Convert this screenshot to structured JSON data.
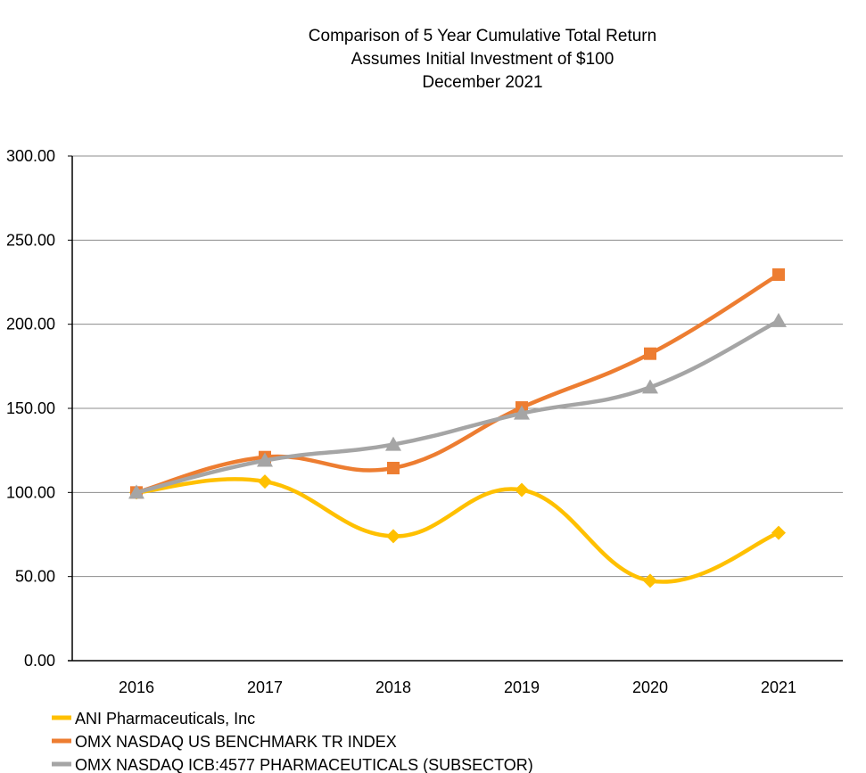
{
  "chart_data": {
    "type": "line",
    "title_lines": [
      "Comparison of 5 Year Cumulative Total Return",
      "Assumes Initial Investment of $100",
      "December 2021"
    ],
    "categories": [
      "2016",
      "2017",
      "2018",
      "2019",
      "2020",
      "2021"
    ],
    "ylim": [
      0,
      300
    ],
    "yticks": [
      "0.00",
      "50.00",
      "100.00",
      "150.00",
      "200.00",
      "250.00",
      "300.00"
    ],
    "ytick_values": [
      0,
      50,
      100,
      150,
      200,
      250,
      300
    ],
    "grid": true,
    "legend_position": "bottom-left",
    "series": [
      {
        "name": "ANI Pharmaceuticals, Inc",
        "marker": "diamond",
        "color": "#FFC000",
        "values": [
          100,
          106.5,
          74,
          101.5,
          47.5,
          76
        ]
      },
      {
        "name": "OMX NASDAQ US BENCHMARK TR INDEX",
        "marker": "square",
        "color": "#ED7D31",
        "values": [
          100,
          121,
          114.5,
          150.5,
          182.5,
          229.5
        ]
      },
      {
        "name": "OMX NASDAQ ICB:4577 PHARMACEUTICALS (SUBSECTOR)",
        "marker": "triangle",
        "color": "#A5A5A5",
        "values": [
          100,
          119,
          128.5,
          147,
          162.5,
          202
        ]
      }
    ]
  }
}
